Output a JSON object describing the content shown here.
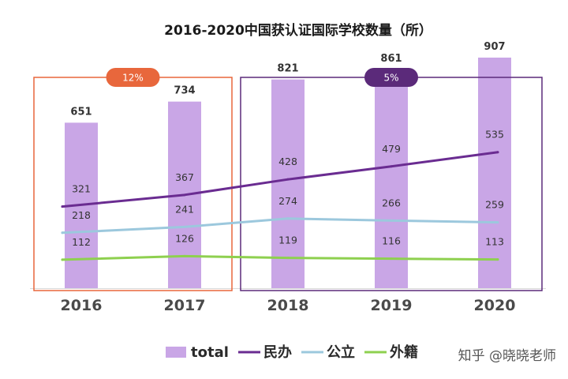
{
  "chart_data": {
    "type": "bar",
    "title": "2016-2020中国获认证国际学校数量（所）",
    "categories": [
      "2016",
      "2017",
      "2018",
      "2019",
      "2020"
    ],
    "series": [
      {
        "name": "total",
        "type": "bar",
        "values": [
          651,
          734,
          821,
          861,
          907
        ],
        "color": "#c9a6e6"
      },
      {
        "name": "民办",
        "type": "line",
        "values": [
          321,
          367,
          428,
          479,
          535
        ],
        "color": "#6a2c91"
      },
      {
        "name": "公立",
        "type": "line",
        "values": [
          218,
          241,
          274,
          266,
          259
        ],
        "color": "#9cc8dd"
      },
      {
        "name": "外籍",
        "type": "line",
        "values": [
          112,
          126,
          119,
          116,
          113
        ],
        "color": "#8ed04f"
      }
    ],
    "ylim": [
      0,
      1000
    ],
    "grid": false,
    "legend_position": "bottom",
    "annotations": [
      {
        "label": "12%",
        "covers": [
          "2016",
          "2017"
        ],
        "color": "#e8673c"
      },
      {
        "label": "5%",
        "covers": [
          "2018",
          "2019",
          "2020"
        ],
        "color": "#5b2a7a"
      }
    ],
    "watermark": "知乎 @晓晓老师"
  }
}
